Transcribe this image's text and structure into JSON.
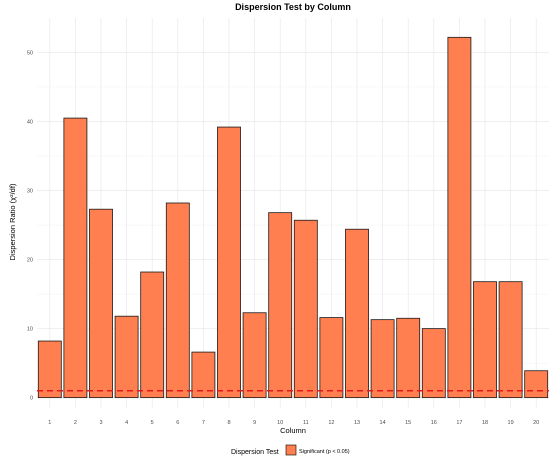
{
  "chart_data": {
    "type": "bar",
    "title": "Dispersion Test by Column",
    "xlabel": "Column",
    "ylabel": "Dispersion Ratio (χ²/df)",
    "categories": [
      "1",
      "2",
      "3",
      "4",
      "5",
      "6",
      "7",
      "8",
      "9",
      "10",
      "11",
      "12",
      "13",
      "14",
      "15",
      "16",
      "17",
      "18",
      "19",
      "20"
    ],
    "series": [
      {
        "name": "Significant (p < 0.05)",
        "color": "#ff7f50",
        "values": [
          8.2,
          40.5,
          27.3,
          11.8,
          18.2,
          28.2,
          6.6,
          39.2,
          12.3,
          26.8,
          25.7,
          11.6,
          24.4,
          11.3,
          11.5,
          10.0,
          52.2,
          16.8,
          16.8,
          3.9
        ]
      }
    ],
    "ylim": [
      -1.5,
      55
    ],
    "yticks": [
      0,
      10,
      20,
      30,
      40,
      50
    ],
    "reference_line": {
      "y": 1,
      "color": "#e31a1c",
      "style": "dashed"
    },
    "legend": {
      "title": "Dispersion Test",
      "position": "bottom"
    },
    "grid": true
  }
}
